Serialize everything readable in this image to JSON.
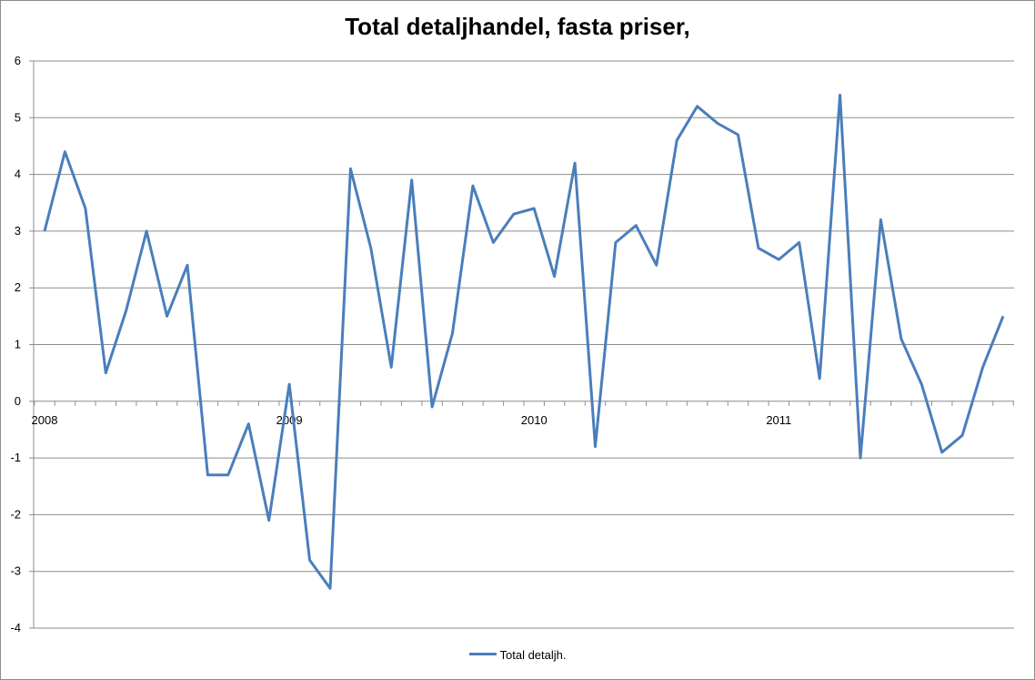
{
  "chart_data": {
    "type": "line",
    "title": "Total detaljhandel, fasta priser,",
    "xlabel": "",
    "ylabel": "",
    "ylim": [
      -4,
      6
    ],
    "yticks": [
      -4,
      -3,
      -2,
      -1,
      0,
      1,
      2,
      3,
      4,
      5,
      6
    ],
    "x_tick_labels": [
      "2008",
      "2009",
      "2010",
      "2011"
    ],
    "months_per_label": 12,
    "grid": true,
    "legend_position": "bottom",
    "series": [
      {
        "name": "Total detaljh.",
        "color": "#4a7ebb",
        "values": [
          3.0,
          4.4,
          3.4,
          0.5,
          1.6,
          3.0,
          1.5,
          2.4,
          -1.3,
          -1.3,
          -0.4,
          -2.1,
          0.3,
          -2.8,
          -3.3,
          4.1,
          2.7,
          0.6,
          3.9,
          -0.1,
          1.2,
          3.8,
          2.8,
          3.3,
          3.4,
          2.2,
          4.2,
          -0.8,
          2.8,
          3.1,
          2.4,
          4.6,
          5.2,
          4.9,
          4.7,
          2.7,
          2.5,
          2.8,
          0.4,
          5.4,
          -1.0,
          3.2,
          1.1,
          0.3,
          -0.9,
          -0.6,
          0.6,
          1.5
        ]
      }
    ]
  }
}
